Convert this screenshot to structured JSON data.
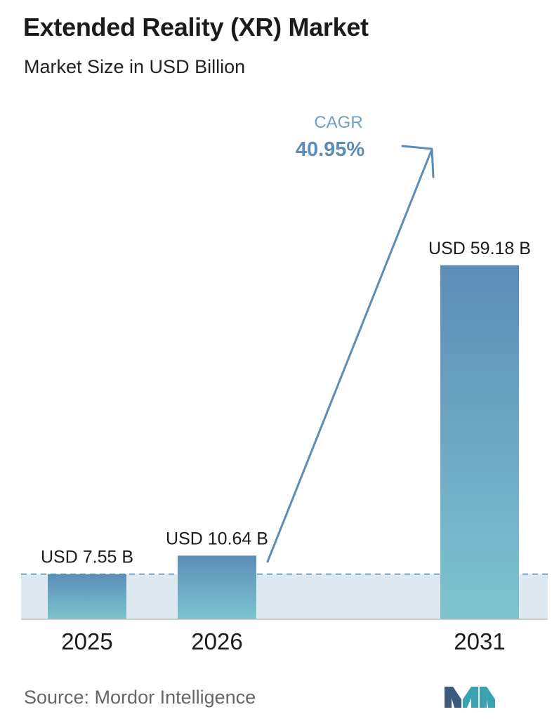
{
  "header": {
    "title": "Extended Reality (XR) Market",
    "subtitle": "Market Size in USD Billion"
  },
  "chart_data": {
    "type": "bar",
    "title": "Extended Reality (XR) Market",
    "subtitle": "Market Size in USD Billion",
    "categories": [
      "2025",
      "2026",
      "2031"
    ],
    "values": [
      7.55,
      10.64,
      59.18
    ],
    "data_labels": [
      "USD 7.55 B",
      "USD 10.64 B",
      "USD 59.18 B"
    ],
    "xlabel": "",
    "ylabel": "",
    "grid": false,
    "annotation": {
      "label": "CAGR",
      "value": "40.95%"
    },
    "colors": {
      "bar_top": "#5b8db8",
      "bar_bottom": "#7ec4ce",
      "band": "#dde8f0",
      "dashed_line": "#4f7fa3",
      "arrow": "#5b8db8",
      "cagr_label": "#6d9fc9",
      "cagr_value": "#5b8db8",
      "axis": "#bbbbbb"
    }
  },
  "footer": {
    "source": "Source:  Mordor Intelligence",
    "logo_icon": "mordor-intelligence-logo-icon",
    "logo_colors": [
      "#3b5b7e",
      "#3aa3b3"
    ]
  }
}
